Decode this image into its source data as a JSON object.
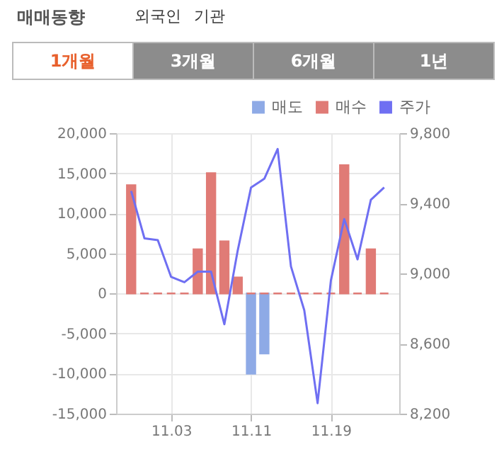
{
  "chart_data": {
    "type": "bar",
    "title": "매매동향",
    "annotations": [
      "외국인",
      "기관",
      "1개월",
      "3개월",
      "6개월",
      "1년"
    ],
    "categories": [
      null,
      null,
      null,
      "11.03",
      null,
      null,
      null,
      null,
      null,
      "11.11",
      null,
      null,
      null,
      null,
      null,
      "11.19",
      null,
      null,
      null,
      null
    ],
    "series": [
      {
        "name": "매도",
        "color": "#8eaae6",
        "values": [
          null,
          null,
          null,
          null,
          null,
          null,
          null,
          null,
          null,
          -10000,
          -7500,
          null,
          null,
          null,
          null,
          null,
          null,
          null,
          null,
          null
        ]
      },
      {
        "name": "매수",
        "color": "#e07b76",
        "values": [
          13500,
          0,
          0,
          0,
          0,
          5500,
          15000,
          6500,
          2000,
          0,
          0,
          0,
          0,
          0,
          0,
          0,
          16000,
          0,
          5500,
          0
        ]
      },
      {
        "name": "주가",
        "color": "#6f6ff2",
        "type": "line",
        "axis": "y2",
        "values": [
          9470,
          9200,
          9190,
          8980,
          8950,
          9010,
          9010,
          8710,
          9130,
          9490,
          9540,
          9710,
          9040,
          8790,
          8260,
          8960,
          9310,
          9080,
          9420,
          9490
        ]
      }
    ],
    "ylim": [
      -15000,
      20000
    ],
    "yticks": [
      {
        "value": -15000,
        "label": "-15,000"
      },
      {
        "value": -10000,
        "label": "-10,000"
      },
      {
        "value": -5000,
        "label": "-5,000"
      },
      0,
      {
        "value": 5000,
        "label": "5,000"
      },
      {
        "value": 10000,
        "label": "10,000"
      },
      {
        "value": 15000,
        "label": "15,000"
      },
      {
        "value": 20000,
        "label": "20,000"
      }
    ],
    "y2lim": [
      8200,
      9800
    ],
    "y2ticks": [
      {
        "value": 8200,
        "label": "8,200"
      },
      {
        "value": 8600,
        "label": "8,600"
      },
      {
        "value": 9000,
        "label": "9,000"
      },
      {
        "value": 9400,
        "label": "9,400"
      },
      {
        "value": 9800,
        "label": "9,800"
      }
    ],
    "grid": true,
    "legend": "top right",
    "marker": "none",
    "line_style": "solid"
  }
}
